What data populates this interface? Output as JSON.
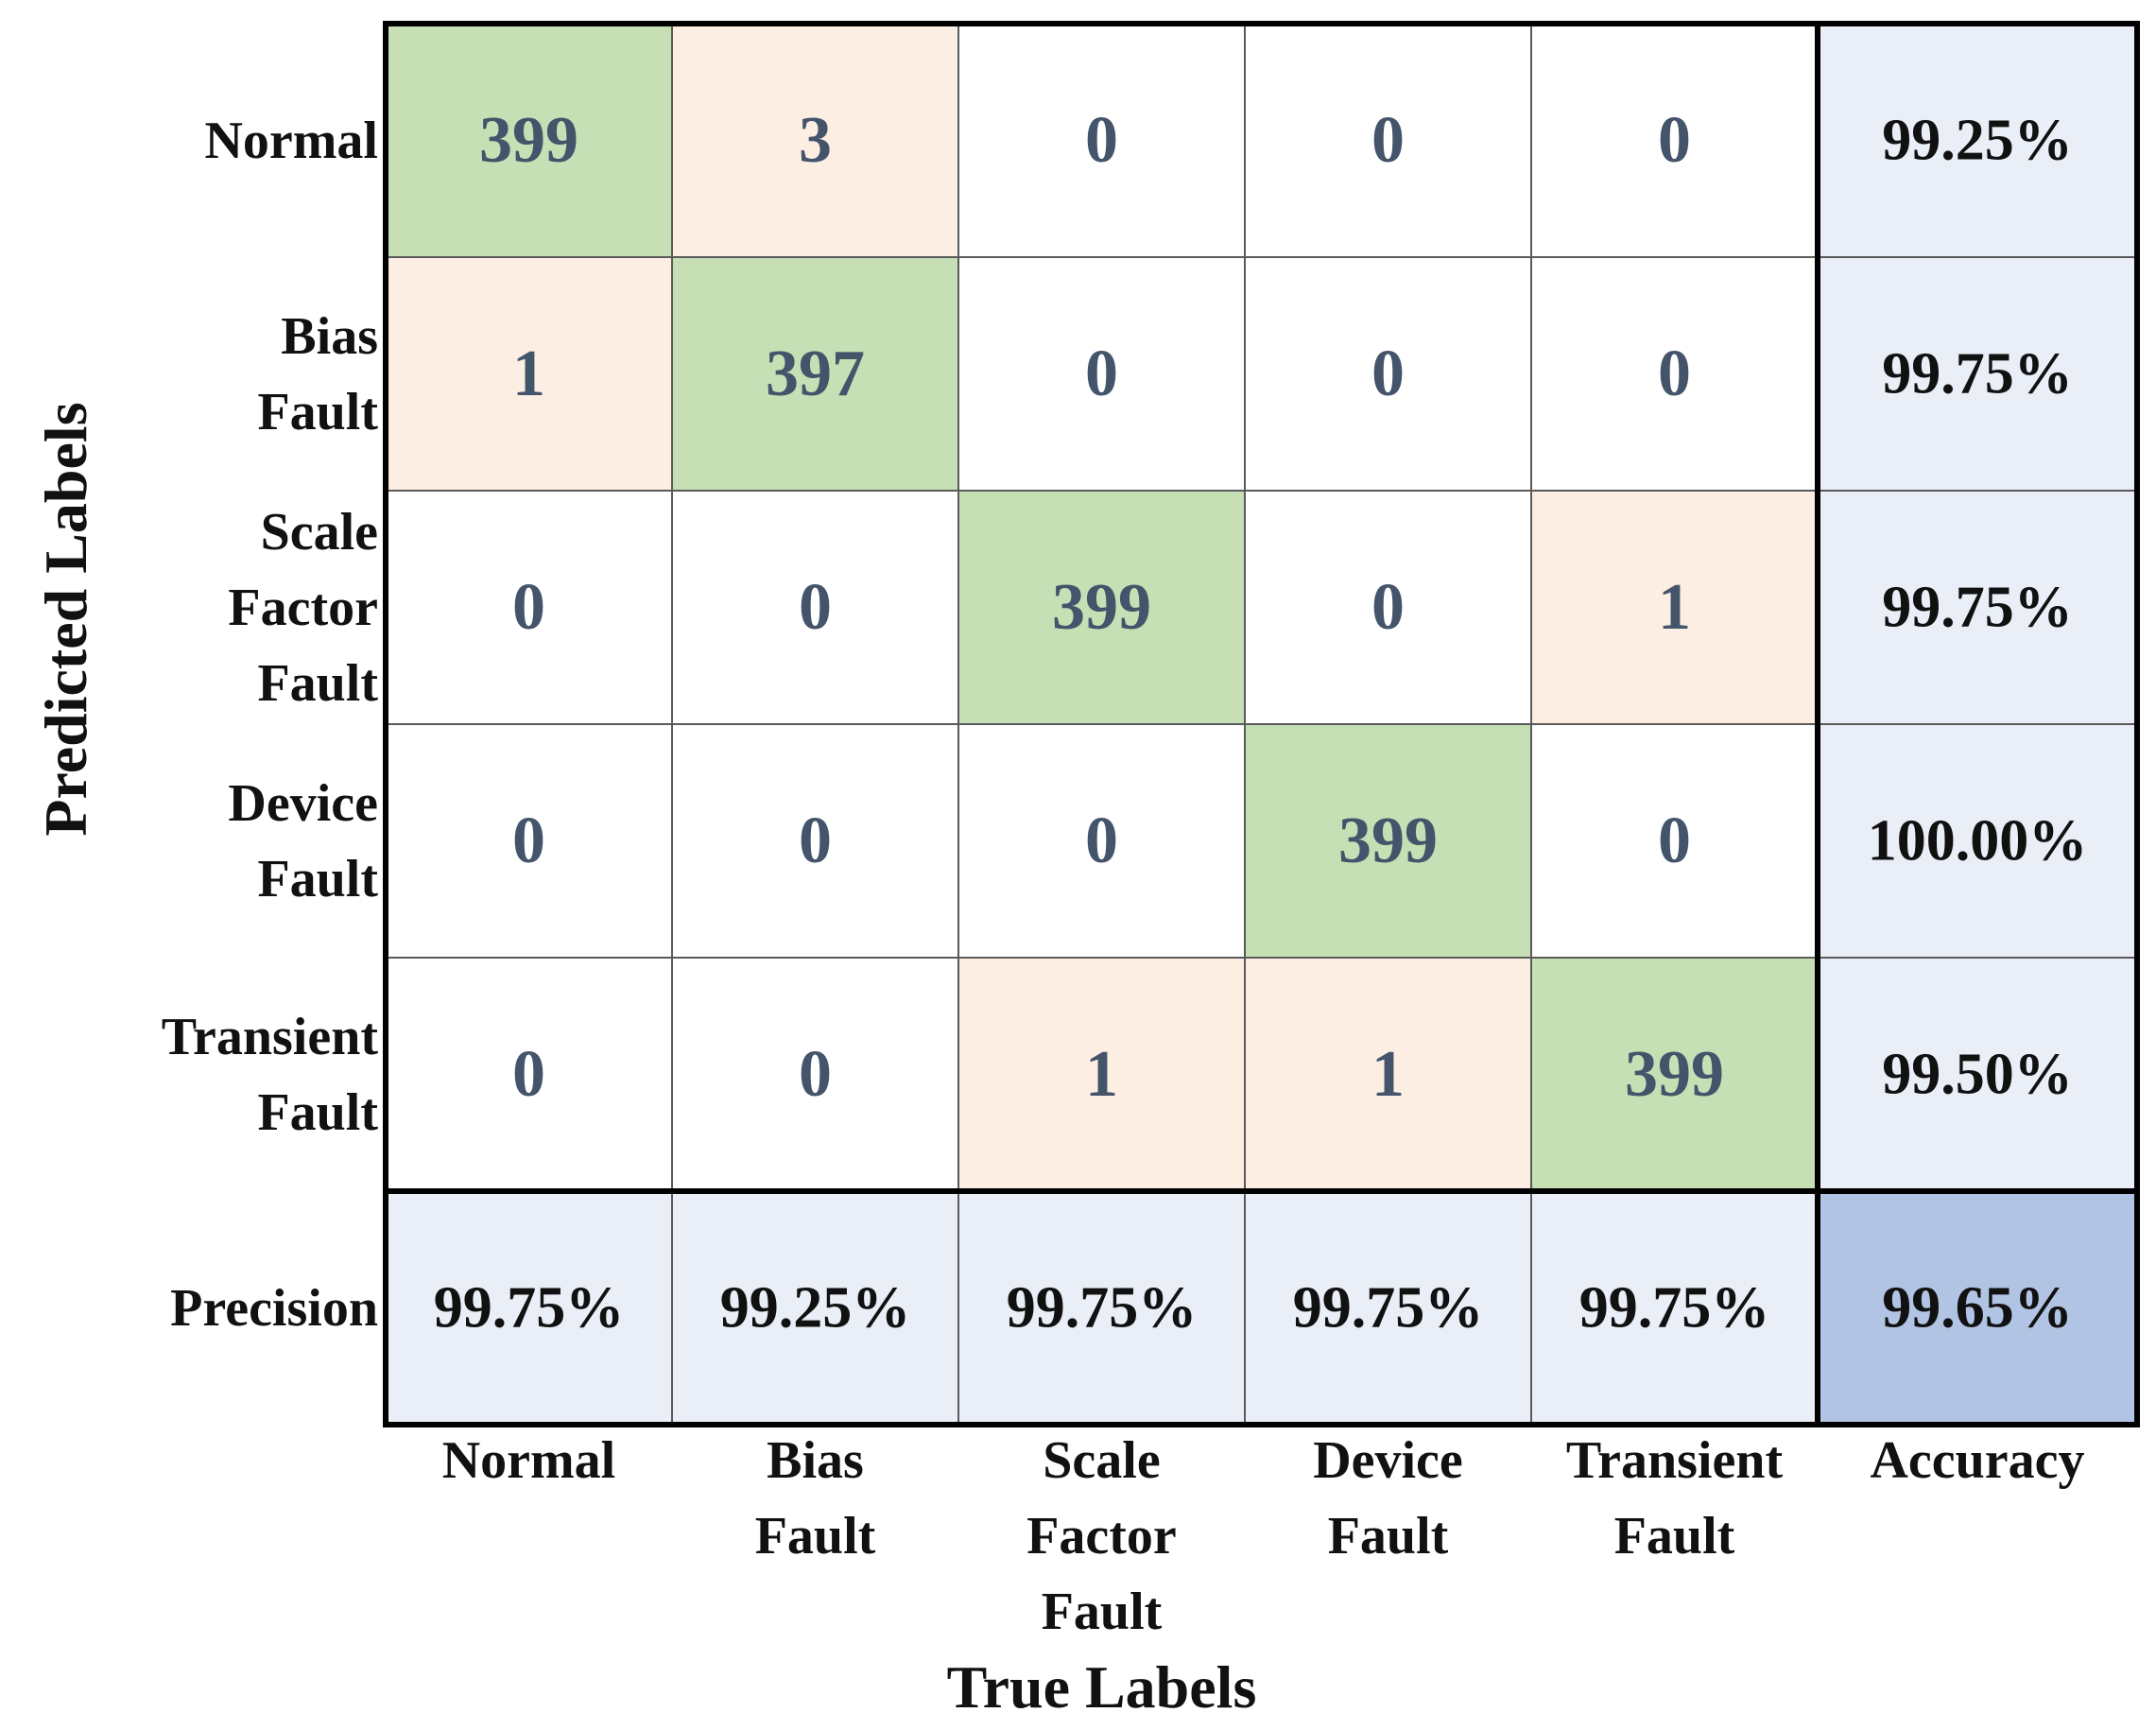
{
  "colors": {
    "diagonal": "#c6dfb4",
    "off_diagonal_nonzero": "#fdeee4",
    "zero": "#ffffff",
    "summary": "#e9eef7",
    "overall": "#b2c4e4",
    "count_text": "#44546a",
    "percent_text": "#111111"
  },
  "chart_data": {
    "type": "heatmap",
    "title": "",
    "xlabel": "True Labels",
    "ylabel": "Predicted Labels",
    "row_labels": [
      "Normal",
      "Bias\nFault",
      "Scale\nFactor\nFault",
      "Device\nFault",
      "Transient\nFault",
      "Precision"
    ],
    "col_labels": [
      "Normal",
      "Bias\nFault",
      "Scale\nFactor\nFault",
      "Device\nFault",
      "Transient\nFault",
      "Accuracy"
    ],
    "matrix": [
      [
        399,
        3,
        0,
        0,
        0
      ],
      [
        1,
        397,
        0,
        0,
        0
      ],
      [
        0,
        0,
        399,
        0,
        1
      ],
      [
        0,
        0,
        0,
        399,
        0
      ],
      [
        0,
        0,
        1,
        1,
        399
      ]
    ],
    "row_accuracy": [
      "99.25%",
      "99.75%",
      "99.75%",
      "100.00%",
      "99.50%"
    ],
    "col_precision": [
      "99.75%",
      "99.25%",
      "99.75%",
      "99.75%",
      "99.75%"
    ],
    "overall": "99.65%"
  }
}
